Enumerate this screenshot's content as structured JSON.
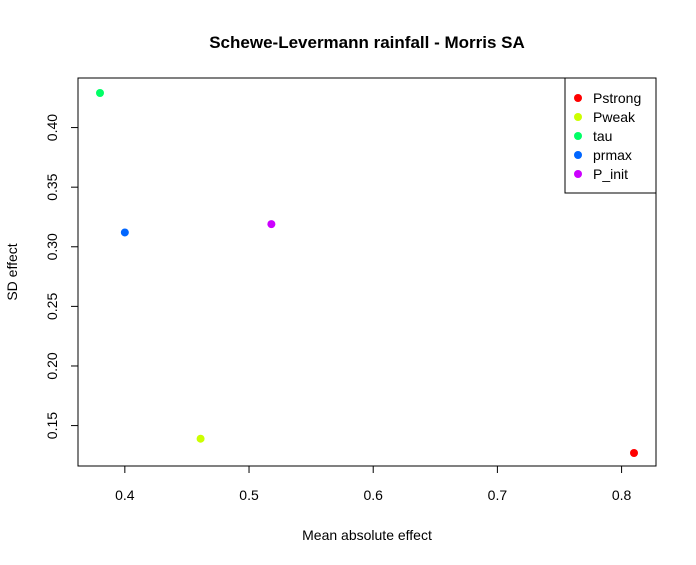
{
  "chart_data": {
    "type": "scatter",
    "title": "Schewe-Levermann rainfall - Morris SA",
    "xlabel": "Mean absolute effect",
    "ylabel": "SD effect",
    "xlim": [
      0.38,
      0.81
    ],
    "ylim": [
      0.127,
      0.429
    ],
    "x_ticks": [
      0.4,
      0.5,
      0.6,
      0.7,
      0.8
    ],
    "y_ticks": [
      0.15,
      0.2,
      0.25,
      0.3,
      0.35,
      0.4
    ],
    "x_tick_labels": [
      "0.4",
      "0.5",
      "0.6",
      "0.7",
      "0.8"
    ],
    "y_tick_labels": [
      "0.15",
      "0.20",
      "0.25",
      "0.30",
      "0.35",
      "0.40"
    ],
    "grid": false,
    "legend_position": "top-right",
    "series": [
      {
        "name": "Pstrong",
        "x": 0.81,
        "y": 0.127,
        "color": "#ff0000"
      },
      {
        "name": "Pweak",
        "x": 0.461,
        "y": 0.139,
        "color": "#ccff00"
      },
      {
        "name": "tau",
        "x": 0.38,
        "y": 0.429,
        "color": "#00ff66"
      },
      {
        "name": "prmax",
        "x": 0.4,
        "y": 0.312,
        "color": "#0066ff"
      },
      {
        "name": "P_init",
        "x": 0.518,
        "y": 0.319,
        "color": "#cc00ff"
      }
    ]
  }
}
